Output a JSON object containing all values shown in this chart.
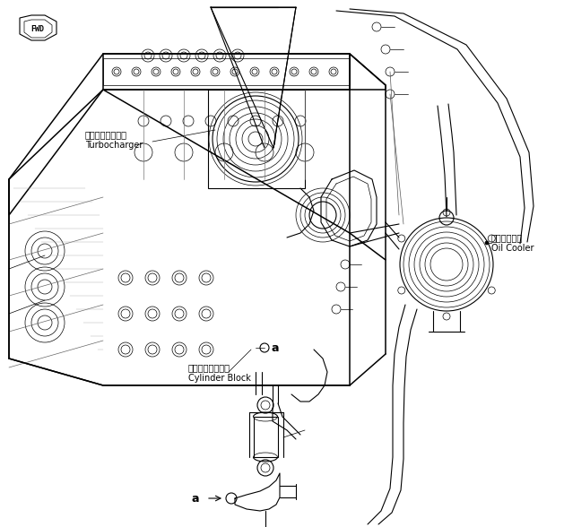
{
  "background_color": "#ffffff",
  "line_color": "#000000",
  "fig_width": 6.29,
  "fig_height": 5.88,
  "dpi": 100,
  "labels": {
    "fwd": "FWD",
    "turbocharger_jp": "ターボチャージャ",
    "turbocharger_en": "Turbocharger",
    "cylinder_block_jp": "シリンダブロック",
    "cylinder_block_en": "Cylinder Block",
    "oil_cooler_jp": "オイルクーラ",
    "oil_cooler_en": "Oil Cooler",
    "a_label": "a"
  }
}
